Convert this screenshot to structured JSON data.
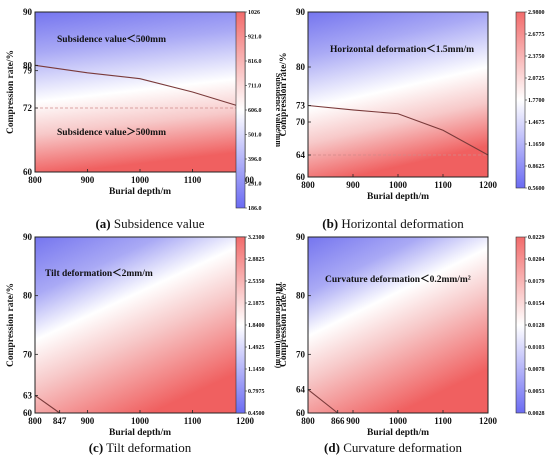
{
  "chart_data": [
    {
      "type": "heatmap",
      "caption_letter": "(a)",
      "caption_text": " Subsidence value",
      "xlabel": "Burial depth/m",
      "ylabel": "Compression rate/%",
      "colorbar_label": "Subsidence value/mm",
      "xlim": [
        800,
        1200
      ],
      "ylim": [
        60,
        90
      ],
      "x_ticks": [
        "800",
        "900",
        "1000",
        "1100",
        "1200"
      ],
      "y_ticks": [
        "60",
        "72",
        "79",
        "80",
        "90"
      ],
      "colorbar_ticks": [
        "1026",
        "921.0",
        "816.0",
        "711.0",
        "606.0",
        "501.0",
        "396.0",
        "291.0",
        "186.0"
      ],
      "colorbar_range": [
        186.0,
        1026
      ],
      "contour": {
        "x": [
          800,
          900,
          1000,
          1100,
          1200
        ],
        "y": [
          80,
          78.6,
          77.5,
          75,
          72
        ]
      },
      "ref_line_y": 72,
      "annotations": [
        "Subsidence value＜500mm",
        "Subsidence value＞500mm"
      ]
    },
    {
      "type": "heatmap",
      "caption_letter": "(b)",
      "caption_text": " Horizontal deformation",
      "xlabel": "Burial depth/m",
      "ylabel": "Compression rate/%",
      "colorbar_label": "Horizontal deformation/(mm/m)",
      "xlim": [
        800,
        1200
      ],
      "ylim": [
        60,
        90
      ],
      "x_ticks": [
        "800",
        "900",
        "1000",
        "1100",
        "1200"
      ],
      "y_ticks": [
        "60",
        "64",
        "70",
        "73",
        "80",
        "90"
      ],
      "colorbar_ticks": [
        "2.9800",
        "2.6775",
        "2.3750",
        "2.0725",
        "1.7700",
        "1.4675",
        "1.1650",
        "0.8625",
        "0.5600"
      ],
      "colorbar_range": [
        0.56,
        2.98
      ],
      "contour": {
        "x": [
          800,
          900,
          1000,
          1100,
          1200
        ],
        "y": [
          73,
          72.2,
          71.5,
          68.5,
          64
        ]
      },
      "ref_line_y": 64,
      "annotations": [
        "Horizontal deformation＜1.5mm/m"
      ]
    },
    {
      "type": "heatmap",
      "caption_letter": "(c)",
      "caption_text": " Tilt deformation",
      "xlabel": "Burial depth/m",
      "ylabel": "Compression rate/%",
      "colorbar_label": "Tilt deformation/(mm/m)",
      "xlim": [
        800,
        1200
      ],
      "ylim": [
        60,
        90
      ],
      "x_ticks": [
        "800",
        "847",
        "900",
        "1000",
        "1100",
        "1200"
      ],
      "y_ticks": [
        "60",
        "63",
        "70",
        "80",
        "90"
      ],
      "colorbar_ticks": [
        "3.2300",
        "2.8825",
        "2.5350",
        "2.1875",
        "1.8400",
        "1.4925",
        "1.1450",
        "0.7975",
        "0.4500"
      ],
      "colorbar_range": [
        0.45,
        3.23
      ],
      "contour": {
        "x": [
          800,
          847
        ],
        "y": [
          63,
          60
        ]
      },
      "ref_line_y": null,
      "annotations": [
        "Tilt deformation＜2mm/m"
      ]
    },
    {
      "type": "heatmap",
      "caption_letter": "(d)",
      "caption_text": " Curvature deformation",
      "xlabel": "Burial depth/m",
      "ylabel": "Compression rate/%",
      "colorbar_label": "Curvature deformation/(mm/m²)",
      "xlim": [
        800,
        1200
      ],
      "ylim": [
        60,
        90
      ],
      "x_ticks": [
        "800",
        "866",
        "900",
        "1000",
        "1100",
        "1200"
      ],
      "y_ticks": [
        "60",
        "64",
        "70",
        "80",
        "90"
      ],
      "colorbar_ticks": [
        "0.0229",
        "0.0204",
        "0.0179",
        "0.0154",
        "0.0128",
        "0.0103",
        "0.0078",
        "0.0053",
        "0.0028"
      ],
      "colorbar_range": [
        0.0028,
        0.0229
      ],
      "contour": {
        "x": [
          800,
          866
        ],
        "y": [
          64,
          60
        ]
      },
      "ref_line_y": null,
      "annotations": [
        "Curvature deformation＜0.2mm/m²"
      ]
    }
  ]
}
